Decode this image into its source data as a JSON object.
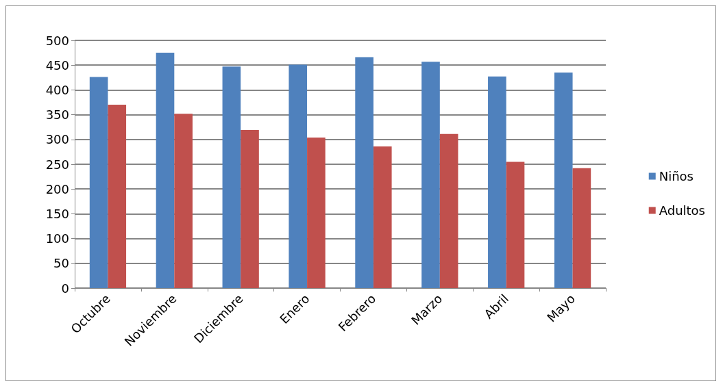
{
  "chart_data": {
    "type": "bar",
    "categories": [
      "Octubre",
      "Noviembre",
      "Diciembre",
      "Enero",
      "Febrero",
      "Marzo",
      "Abril",
      "Mayo"
    ],
    "series": [
      {
        "name": "Niños",
        "color": "#4f81bd",
        "values": [
          426,
          475,
          447,
          451,
          466,
          457,
          427,
          435
        ]
      },
      {
        "name": "Adultos",
        "color": "#c0504d",
        "values": [
          370,
          352,
          319,
          304,
          286,
          311,
          255,
          242
        ]
      }
    ],
    "ylim": [
      0,
      500
    ],
    "yticks": [
      0,
      50,
      100,
      150,
      200,
      250,
      300,
      350,
      400,
      450,
      500
    ],
    "grid": "y",
    "legend": "right"
  }
}
